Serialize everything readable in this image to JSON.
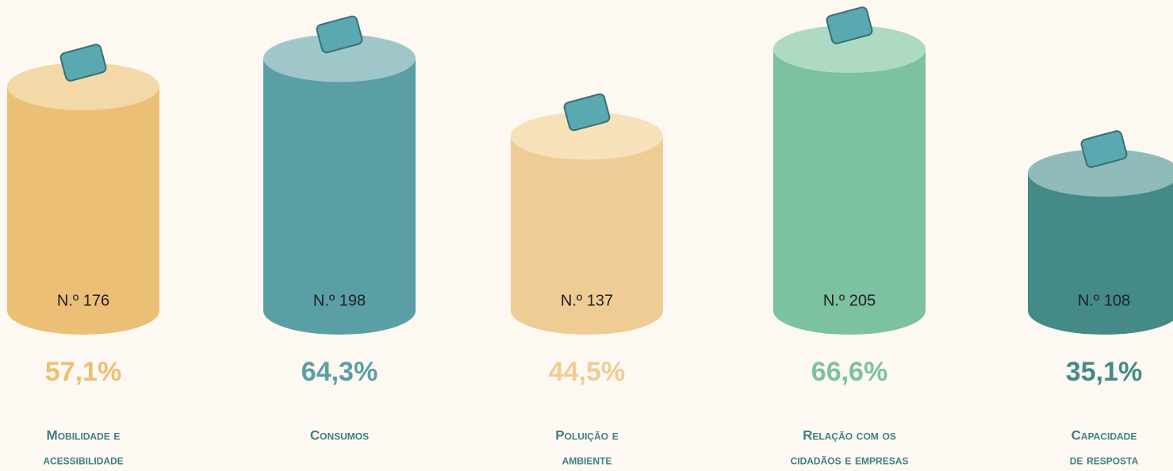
{
  "chart_data": {
    "type": "cylinder",
    "categories": [
      [
        "Mobilidade e",
        "acessibilidade"
      ],
      [
        "Consumos"
      ],
      [
        "Poluição e",
        "ambiente"
      ],
      [
        "Relação com os",
        "cidadãos e empresas"
      ],
      [
        "Capacidade",
        "de resposta"
      ]
    ],
    "values": [
      176,
      198,
      137,
      205,
      108
    ],
    "value_labels": [
      "N.º 176",
      "N.º 198",
      "N.º 137",
      "N.º 205",
      "N.º 108"
    ],
    "percentages": [
      57.1,
      64.3,
      44.5,
      66.6,
      35.1
    ],
    "percentage_labels": [
      "57,1%",
      "64,3%",
      "44,5%",
      "66,6%",
      "35,1%"
    ],
    "colors": [
      "#ebbf76",
      "#5a9fa6",
      "#f0cc95",
      "#7cc1a1",
      "#448a87"
    ],
    "top_colors": [
      "#f3d8a8",
      "#9fc7c9",
      "#f6e1bb",
      "#aedac4",
      "#8fbbb8"
    ]
  }
}
